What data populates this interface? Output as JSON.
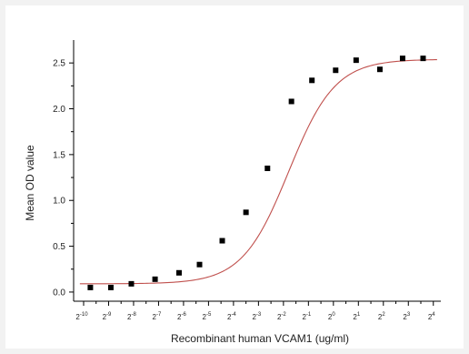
{
  "chart_data": {
    "type": "scatter",
    "title": "",
    "xlabel": "Recombinant human VCAM1 (ug/ml)",
    "ylabel": "Mean OD value",
    "x_scale": "log2",
    "x_tick_base": "2",
    "x_tick_exponents": [
      "-10",
      "-9",
      "-8",
      "-7",
      "-6",
      "-5",
      "-4",
      "-3",
      "-2",
      "-1",
      "0",
      "1",
      "2",
      "3",
      "4"
    ],
    "x_tick_values": [
      -10,
      -9,
      -8,
      -7,
      -6,
      -5,
      -4,
      -3,
      -2,
      -1,
      0,
      1,
      2,
      3,
      4
    ],
    "y_ticks": [
      "0.0",
      "0.5",
      "1.0",
      "1.5",
      "2.0",
      "2.5"
    ],
    "y_tick_values": [
      0,
      0.5,
      1.0,
      1.5,
      2.0,
      2.5
    ],
    "xlim": [
      -10.4,
      4.3
    ],
    "ylim": [
      -0.1,
      2.75
    ],
    "grid": false,
    "legend": "none",
    "series": [
      {
        "marker": "square",
        "color": "#000000",
        "x": [
          -9.73,
          -8.91,
          -8.09,
          -7.14,
          -6.18,
          -5.36,
          -4.45,
          -3.5,
          -2.64,
          -1.68,
          -0.86,
          0.09,
          0.91,
          1.86,
          2.77,
          3.59
        ],
        "y": [
          0.05,
          0.05,
          0.09,
          0.14,
          0.21,
          0.3,
          0.56,
          0.87,
          1.35,
          2.08,
          2.31,
          2.42,
          2.53,
          2.43,
          2.55,
          2.55
        ]
      }
    ],
    "fit_curve": {
      "model": "logistic",
      "color": "#c0504d",
      "bottom": 0.09,
      "top": 2.54,
      "midpoint": -1.79,
      "slope": 0.93
    }
  }
}
